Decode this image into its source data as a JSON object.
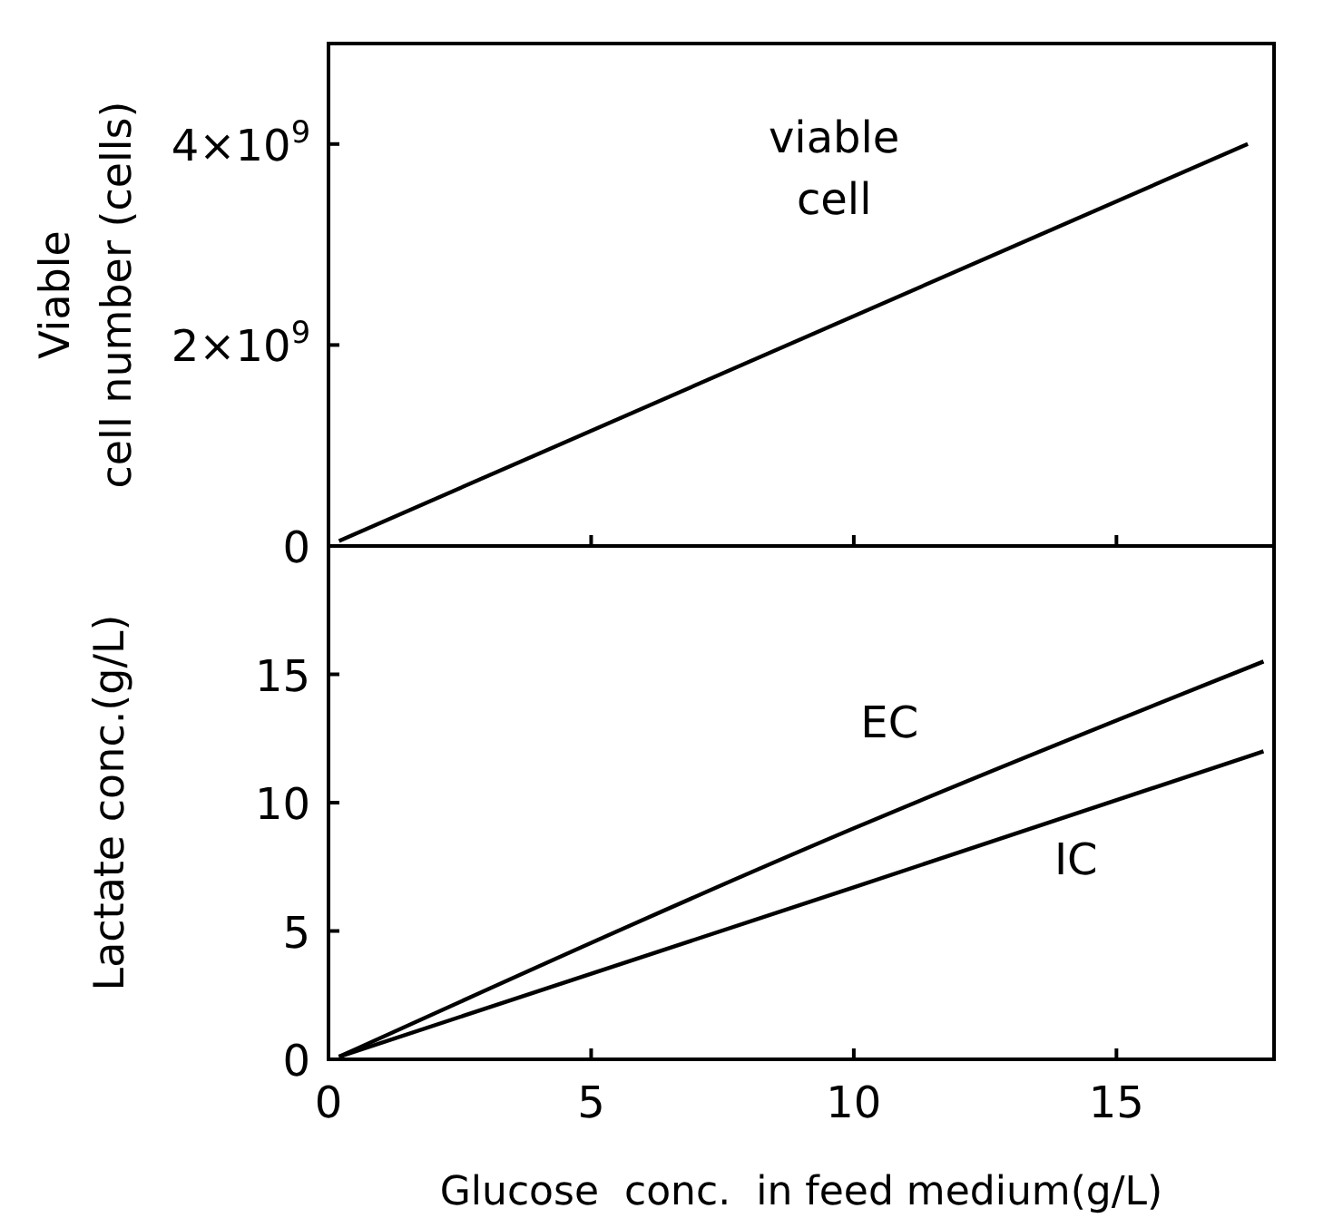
{
  "chart_data": [
    {
      "type": "line",
      "ylabel": "Viable\ncell number (cells)",
      "x": [
        0.2,
        17.5
      ],
      "xlim": [
        0,
        18
      ],
      "xticks": [
        0,
        5,
        10,
        15
      ],
      "ylim": [
        0,
        5000000000
      ],
      "yticks": [
        0,
        {
          "value": 2000000000,
          "label": "2×10$^{9}$"
        },
        {
          "value": 4000000000,
          "label": "4×10$^{9}$"
        }
      ],
      "tick_labels": "y",
      "grid": false,
      "marker": "none",
      "line_style": "solid",
      "series": [
        {
          "name": "viable\ncell",
          "color": "#000000",
          "values": [
            50000000.0,
            4000000000.0
          ]
        }
      ]
    },
    {
      "type": "line",
      "xlabel": "Glucose  conc.  in feed medium(g/L)",
      "ylabel": "Lactate conc.(g/L)",
      "xlim": [
        0,
        18
      ],
      "xticks": [
        0,
        5,
        10,
        15
      ],
      "ylim": [
        0,
        20
      ],
      "yticks": [
        0,
        5,
        10,
        15
      ],
      "grid": false,
      "marker": "none",
      "line_style": "solid",
      "series": [
        {
          "name": "EC",
          "color": "#000000",
          "x": [
            0.2,
            10,
            17.8
          ],
          "values": [
            0.1,
            9.0,
            15.5
          ]
        },
        {
          "name": "IC",
          "color": "#000000",
          "x": [
            0.2,
            10,
            17.8
          ],
          "values": [
            0.1,
            6.7,
            12.0
          ]
        }
      ]
    }
  ]
}
